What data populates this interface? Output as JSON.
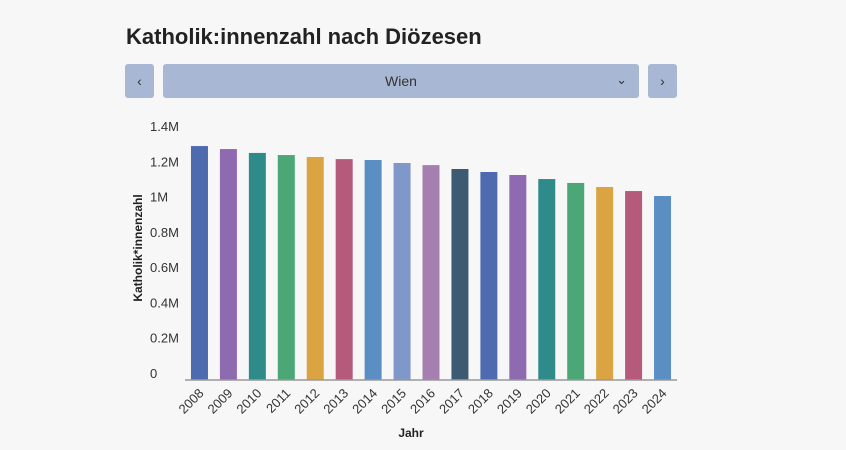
{
  "title": "Katholik:innenzahl nach Diözesen",
  "controls": {
    "prev_label": "‹",
    "next_label": "›",
    "selected": "Wien",
    "dropdown_icon": "chevron-down-icon"
  },
  "chart_data": {
    "type": "bar",
    "title": "",
    "xlabel": "Jahr",
    "ylabel": "Katholik*innenzahl",
    "ylim": [
      0,
      1400000
    ],
    "yticks": [
      0,
      200000,
      400000,
      600000,
      800000,
      1000000,
      1200000,
      1400000
    ],
    "ytick_labels": [
      "0",
      "0.2M",
      "0.4M",
      "0.6M",
      "0.8M",
      "1M",
      "1.2M",
      "1.4M"
    ],
    "categories": [
      "2008",
      "2009",
      "2010",
      "2011",
      "2012",
      "2013",
      "2014",
      "2015",
      "2016",
      "2017",
      "2018",
      "2019",
      "2020",
      "2021",
      "2022",
      "2023",
      "2024"
    ],
    "values": [
      1326000,
      1309000,
      1287000,
      1275000,
      1264000,
      1252000,
      1247000,
      1230000,
      1218000,
      1196000,
      1179000,
      1162000,
      1139000,
      1117000,
      1094000,
      1071000,
      1043000
    ],
    "colors": [
      "#4e6bb0",
      "#8e6ab1",
      "#2e8b8a",
      "#4ba876",
      "#d9a441",
      "#b55a7b",
      "#5b8fc4",
      "#7f98c9",
      "#a67fb1",
      "#3d5a73",
      "#4e6bb0",
      "#8e6ab1",
      "#2e8b8a",
      "#4ba876",
      "#d9a441",
      "#b55a7b",
      "#5b8fc4"
    ],
    "grid": false,
    "legend": "none"
  }
}
